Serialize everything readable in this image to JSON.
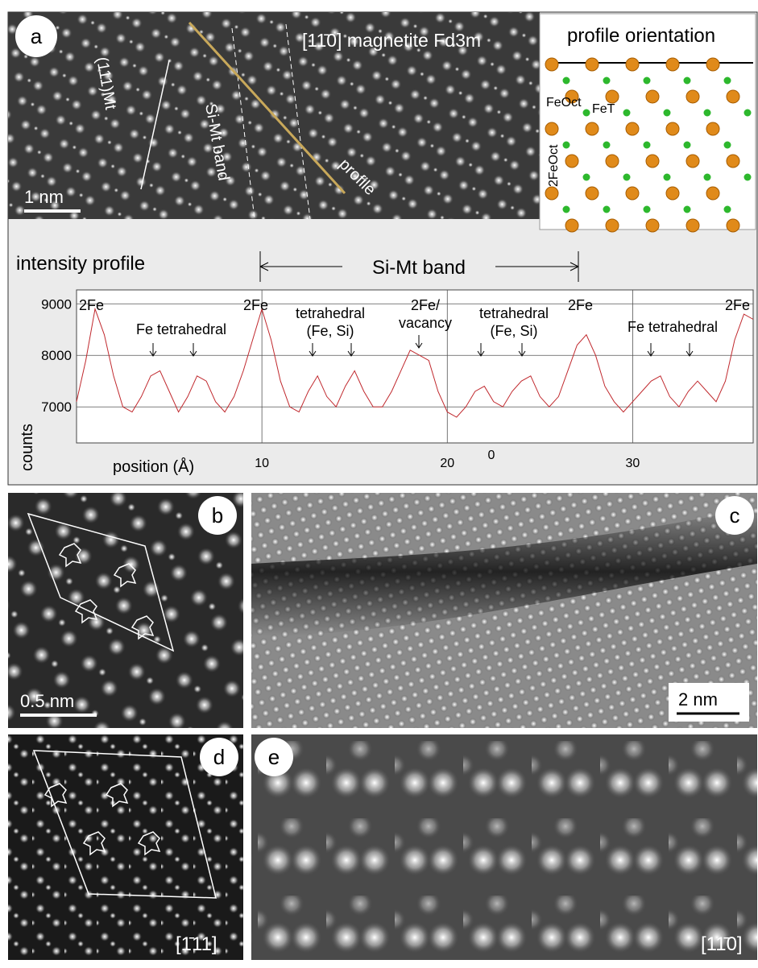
{
  "panels": {
    "a": "a",
    "b": "b",
    "c": "c",
    "d": "d",
    "e": "e"
  },
  "panel_a": {
    "zone": "[11̄0] magnetite Fd3m",
    "plane": "(111)Mt",
    "band": "Si-Mt band",
    "profile": "profile",
    "scale": "1 nm"
  },
  "orientation": {
    "title": "profile orientation",
    "fe_oct": "FeOct",
    "fe_t": "FeT",
    "two_fe_oct": "2FeOct"
  },
  "panel_b": {
    "scale": "0.5 nm"
  },
  "panel_c": {
    "scale": "2 nm"
  },
  "panel_d": {
    "zone": "[1̄11]"
  },
  "panel_e": {
    "zone": "[11̄0]"
  },
  "chart_data": {
    "type": "line",
    "title": "intensity profile",
    "band_label": "Si-Mt band",
    "xlabel": "position (Å)",
    "ylabel": "counts",
    "origin_label": "0",
    "xlim": [
      0,
      36.5
    ],
    "xticks": [
      10,
      20,
      30
    ],
    "ylim": [
      6300,
      9270
    ],
    "yticks": [
      7000,
      8000,
      9000
    ],
    "grid": true,
    "annotations": [
      "2Fe",
      "Fe tetrahedral",
      "2Fe",
      "tetrahedral (Fe, Si)",
      "2Fe/ vacancy",
      "tetrahedral (Fe, Si)",
      "2Fe",
      "Fe tetrahedral",
      "2Fe"
    ],
    "x": [
      0,
      0.5,
      1,
      1.5,
      2,
      2.5,
      3,
      3.5,
      4,
      4.5,
      5,
      5.5,
      6,
      6.5,
      7,
      7.5,
      8,
      8.5,
      9,
      9.5,
      10,
      10.5,
      11,
      11.5,
      12,
      12.5,
      13,
      13.5,
      14,
      14.5,
      15,
      15.5,
      16,
      16.5,
      17,
      17.5,
      18,
      18.5,
      19,
      19.5,
      20,
      20.5,
      21,
      21.5,
      22,
      22.5,
      23,
      23.5,
      24,
      24.5,
      25,
      25.5,
      26,
      26.5,
      27,
      27.5,
      28,
      28.5,
      29,
      29.5,
      30,
      30.5,
      31,
      31.5,
      32,
      32.5,
      33,
      33.5,
      34,
      34.5,
      35,
      35.5,
      36,
      36.5
    ],
    "series": [
      {
        "name": "counts",
        "color": "#c0282d",
        "values": [
          7100,
          7900,
          8900,
          8400,
          7600,
          7000,
          6900,
          7200,
          7600,
          7700,
          7300,
          6900,
          7200,
          7600,
          7500,
          7100,
          6900,
          7200,
          7700,
          8300,
          8900,
          8300,
          7500,
          7000,
          6900,
          7300,
          7600,
          7200,
          7000,
          7400,
          7700,
          7300,
          7000,
          7000,
          7300,
          7700,
          8100,
          8000,
          7900,
          7300,
          6900,
          6800,
          7000,
          7300,
          7400,
          7100,
          7000,
          7300,
          7500,
          7600,
          7200,
          7000,
          7200,
          7700,
          8200,
          8400,
          8000,
          7400,
          7100,
          6900,
          7100,
          7300,
          7500,
          7600,
          7200,
          7000,
          7300,
          7500,
          7300,
          7100,
          7500,
          8300,
          8800,
          8700
        ]
      }
    ]
  }
}
